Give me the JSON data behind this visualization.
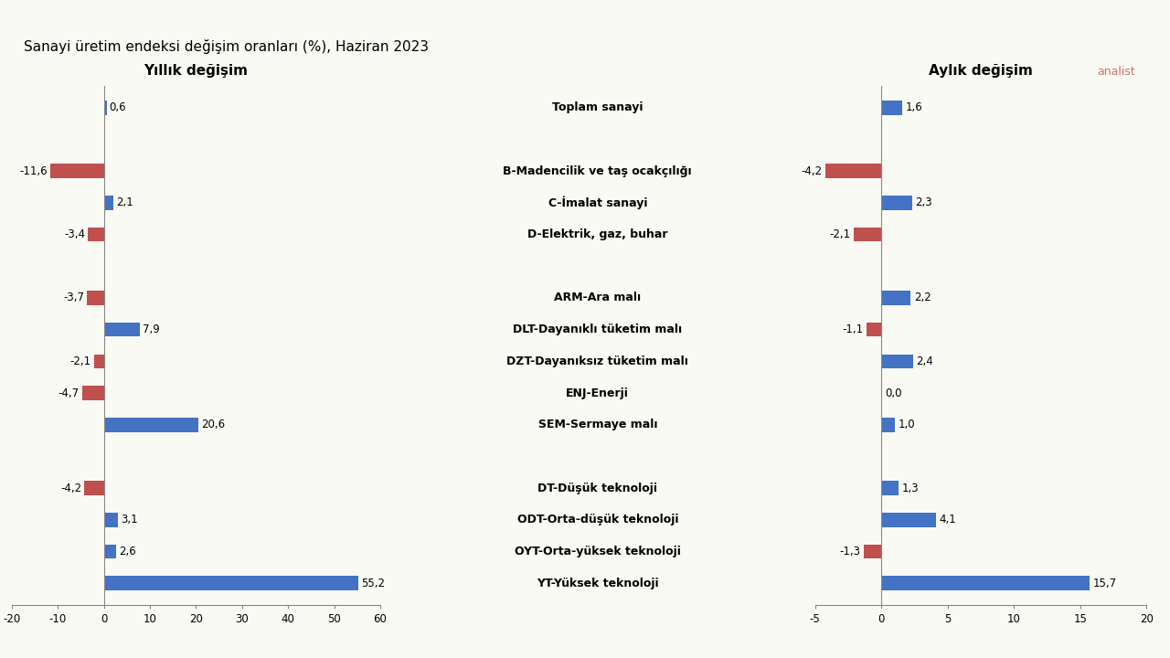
{
  "title": "Sanayi üretim endeksi değişim oranları (%), Haziran 2023",
  "left_title": "Yıllık değişim",
  "right_title": "Aylık değişim",
  "watermark": "analist",
  "categories": [
    "Toplam sanayi",
    "",
    "B-Madencilik ve taş ocakçılığı",
    "C-İmalat sanayi",
    "D-Elektrik, gaz, buhar",
    "",
    "ARM-Ara malı",
    "DLT-Dayanıklı tüketim malı",
    "DZT-Dayanıksız tüketim malı",
    "ENJ-Enerji",
    "SEM-Sermaye malı",
    "",
    "DT-Düşük teknoloji",
    "ODT-Orta-düşük teknoloji",
    "OYT-Orta-yüksek teknoloji",
    "YT-Yüksek teknoloji"
  ],
  "yearly_values": [
    0.6,
    null,
    -11.6,
    2.1,
    -3.4,
    null,
    -3.7,
    7.9,
    -2.1,
    -4.7,
    20.6,
    null,
    -4.2,
    3.1,
    2.6,
    55.2
  ],
  "monthly_values": [
    1.6,
    null,
    -4.2,
    2.3,
    -2.1,
    null,
    2.2,
    -1.1,
    2.4,
    0.0,
    1.0,
    null,
    1.3,
    4.1,
    -1.3,
    15.7
  ],
  "positive_color": "#4472C4",
  "negative_color": "#C0504D",
  "bar_height": 0.45,
  "left_xlim": [
    -20,
    60
  ],
  "left_xticks": [
    -20,
    -10,
    0,
    10,
    20,
    30,
    40,
    50,
    60
  ],
  "right_xlim": [
    -5,
    20
  ],
  "right_xticks": [
    -5,
    0,
    5,
    10,
    15,
    20
  ],
  "background_color": "#FAFAF5",
  "font_size_title": 10,
  "font_size_subtitle": 11,
  "font_size_labels": 9,
  "font_size_values": 8.5,
  "font_size_axis": 8.5
}
